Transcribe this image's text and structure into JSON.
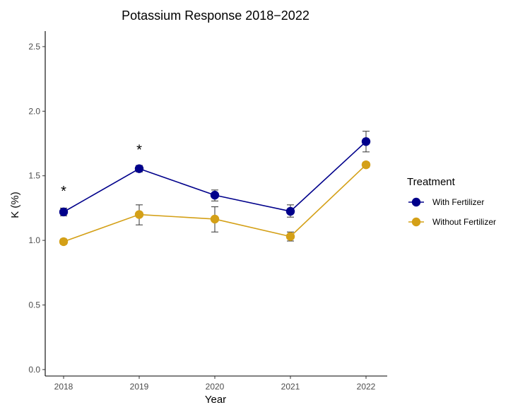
{
  "chart_data": {
    "type": "line",
    "title": "Potassium Response 2018−2022",
    "xlabel": "Year",
    "ylabel": "K (%)",
    "categories": [
      "2018",
      "2019",
      "2020",
      "2021",
      "2022"
    ],
    "ylim": [
      -0.05,
      2.62
    ],
    "yticks": [
      "0.0",
      "0.5",
      "1.0",
      "1.5",
      "2.0",
      "2.5"
    ],
    "grid": false,
    "legend": {
      "title": "Treatment",
      "position": "right"
    },
    "series": [
      {
        "name": "With Fertilizer",
        "color": "#00008b",
        "values": [
          1.22,
          1.555,
          1.35,
          1.225,
          1.765
        ],
        "error_low": [
          1.19,
          1.53,
          1.305,
          1.18,
          1.685
        ],
        "error_high": [
          1.25,
          1.58,
          1.39,
          1.275,
          1.845
        ]
      },
      {
        "name": "Without Fertilizer",
        "color": "#d4a017",
        "values": [
          0.99,
          1.2,
          1.165,
          1.03,
          1.585
        ],
        "error_low": [
          0.97,
          1.12,
          1.065,
          0.995,
          1.565
        ],
        "error_high": [
          1.01,
          1.275,
          1.26,
          1.065,
          1.605
        ]
      }
    ],
    "annotations": [
      {
        "category": "2018",
        "y": 1.4,
        "text": "*"
      },
      {
        "category": "2019",
        "y": 1.72,
        "text": "*"
      }
    ]
  }
}
